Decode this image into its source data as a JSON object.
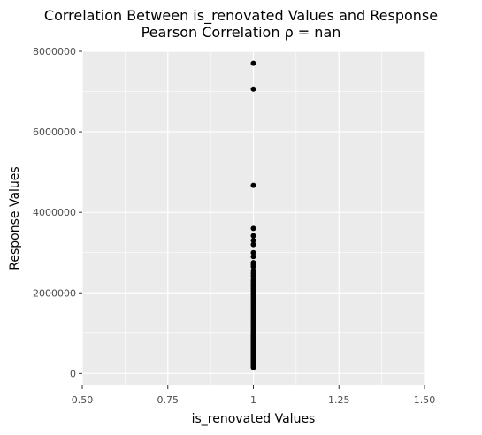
{
  "chart_data": {
    "type": "scatter",
    "title": "Correlation Between is_renovated Values and Response",
    "subtitle": "Pearson Correlation ρ = nan",
    "xlabel": "is_renovated Values",
    "ylabel": "Response Values",
    "xlim": [
      0.5,
      1.5
    ],
    "ylim": [
      -300000,
      8000000
    ],
    "x_ticks": [
      0.5,
      0.75,
      1.0,
      1.25,
      1.5
    ],
    "x_tick_labels": [
      "0.50",
      "0.75",
      "1",
      "1.25",
      "1.50"
    ],
    "y_ticks": [
      0,
      2000000,
      4000000,
      6000000,
      8000000
    ],
    "y_tick_labels": [
      "0",
      "2000000",
      "4000000",
      "6000000",
      "8000000"
    ],
    "grid": true,
    "colors": {
      "panel": "#ebebeb",
      "grid": "#ffffff",
      "point": "#000000"
    },
    "x": [
      1,
      1,
      1,
      1,
      1,
      1,
      1,
      1,
      1,
      1,
      1,
      1,
      1,
      1,
      1,
      1,
      1,
      1,
      1,
      1,
      1,
      1,
      1,
      1,
      1,
      1,
      1,
      1,
      1,
      1,
      1,
      1,
      1,
      1,
      1,
      1,
      1,
      1,
      1,
      1,
      1,
      1,
      1,
      1,
      1,
      1,
      1,
      1,
      1,
      1,
      1,
      1,
      1,
      1,
      1,
      1,
      1,
      1,
      1,
      1,
      1,
      1,
      1,
      1,
      1,
      1,
      1,
      1,
      1,
      1,
      1,
      1,
      1,
      1,
      1,
      1,
      1,
      1,
      1
    ],
    "y": [
      7700000,
      7060000,
      4670000,
      3600000,
      3420000,
      3300000,
      3200000,
      3000000,
      2900000,
      2750000,
      2700000,
      2650000,
      2550000,
      2480000,
      2420000,
      2350000,
      2300000,
      2250000,
      2200000,
      2150000,
      2100000,
      2050000,
      2000000,
      1950000,
      1900000,
      1850000,
      1800000,
      1750000,
      1700000,
      1650000,
      1600000,
      1550000,
      1500000,
      1450000,
      1400000,
      1350000,
      1300000,
      1250000,
      1200000,
      1150000,
      1100000,
      1050000,
      1000000,
      980000,
      950000,
      920000,
      900000,
      880000,
      850000,
      820000,
      800000,
      780000,
      750000,
      720000,
      700000,
      680000,
      650000,
      620000,
      600000,
      580000,
      550000,
      520000,
      500000,
      480000,
      450000,
      420000,
      400000,
      380000,
      350000,
      330000,
      310000,
      290000,
      270000,
      250000,
      230000,
      210000,
      190000,
      170000,
      150000
    ]
  }
}
